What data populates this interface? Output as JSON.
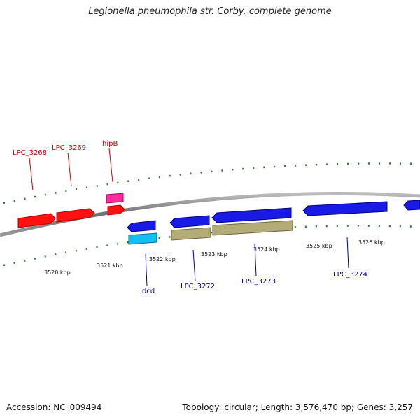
{
  "title": "Legionella pneumophila str. Corby, complete genome",
  "footer": {
    "accession": "Accession: NC_009494",
    "summary": "Topology: circular; Length: 3,576,470 bp; Genes: 3,257"
  },
  "scale_labels": [
    "3520 kbp",
    "3521 kbp",
    "3522 kbp",
    "3523 kbp",
    "3524 kbp",
    "3525 kbp",
    "3526 kbp"
  ],
  "gene_labels": {
    "forward": [
      "LPC_3268",
      "LPC_3269",
      "hipB"
    ],
    "reverse": [
      "dcd",
      "LPC_3272",
      "LPC_3273",
      "LPC_3274"
    ]
  },
  "colors": {
    "forward_cds": "#ff1111",
    "forward_small": "#ff2a9c",
    "reverse_cds": "#1a1ae6",
    "reverse_small": "#12bff5",
    "rna_feature": "#b3ac79",
    "backbone": "#888888",
    "ticks": "#2a7a2a",
    "forward_label": "#cc0000",
    "reverse_label": "#0000aa"
  }
}
